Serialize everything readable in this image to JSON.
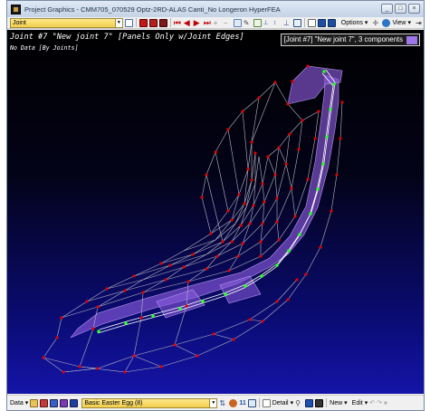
{
  "window": {
    "title": "Project Graphics - CMM705_070529 Optz-2RD-ALAS Canti_No Longeron HyperFEA",
    "buttons": [
      "_",
      "□",
      "×"
    ]
  },
  "top_toolbar": {
    "mode_select": "Joint",
    "options_label": "Options",
    "view_label": "View"
  },
  "viewport": {
    "title": "Joint #7 \"New joint 7\" [Panels Only w/Joint Edges]",
    "subtitle": "No Data [By Joints]",
    "badge_text": "[Joint #7] \"New joint 7\", 3 components",
    "badge_color": "#9e78e6",
    "background_top": "#000000",
    "background_bottom": "#1414a8",
    "joint_color": "#e00000",
    "selected_joint_color": "#22ff22",
    "panel_color": "#8e5ce0"
  },
  "bottom_toolbar": {
    "data_label": "Data",
    "preset_select": "Basic Easter Egg (8)",
    "counter": "11",
    "detail_label": "Detail",
    "new_label": "New",
    "edit_label": "Edit"
  }
}
